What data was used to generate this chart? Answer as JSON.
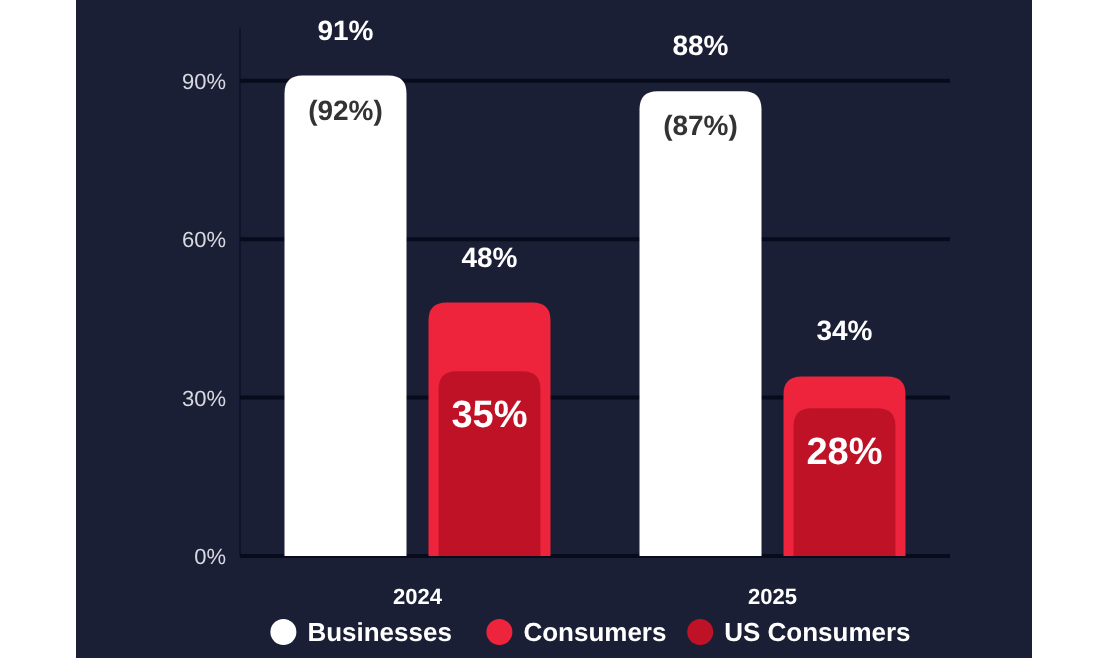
{
  "chart_data": {
    "type": "bar",
    "categories": [
      "2024",
      "2025"
    ],
    "series": [
      {
        "name": "Businesses",
        "color": "#ffffff",
        "values": [
          91,
          88
        ],
        "value_labels": [
          "91%",
          "88%"
        ]
      },
      {
        "name": "Consumers",
        "color": "#ee243c",
        "values": [
          48,
          34
        ],
        "value_labels": [
          "48%",
          "34%"
        ]
      },
      {
        "name": "US Consumers",
        "color": "#c01226",
        "values": [
          35,
          28
        ],
        "value_labels": [
          "35%",
          "28%"
        ]
      }
    ],
    "ylim": [
      0,
      100
    ],
    "yticks": [
      {
        "value": 0,
        "label": "0%"
      },
      {
        "value": 30,
        "label": "30%"
      },
      {
        "value": 60,
        "label": "60%"
      },
      {
        "value": 90,
        "label": "90%"
      }
    ],
    "grid": "y",
    "legend": "bottom",
    "annotations": [
      "(92%)",
      "(87%)"
    ]
  }
}
